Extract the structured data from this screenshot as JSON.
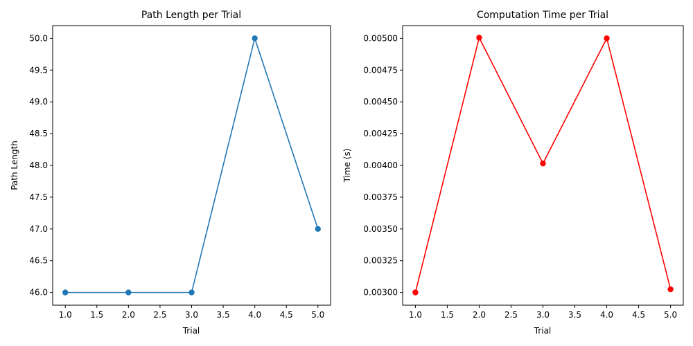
{
  "chart_data": [
    {
      "type": "line",
      "title": "Path Length per Trial",
      "xlabel": "Trial",
      "ylabel": "Path Length",
      "x": [
        1,
        2,
        3,
        4,
        5
      ],
      "series": [
        {
          "values": [
            46,
            46,
            46,
            50,
            47
          ],
          "color": "#1f77b4",
          "marker": "circle"
        }
      ],
      "xlim": [
        0.8,
        5.2
      ],
      "ylim": [
        45.8,
        50.2
      ],
      "xticks": [
        "1.0",
        "1.5",
        "2.0",
        "2.5",
        "3.0",
        "3.5",
        "4.0",
        "4.5",
        "5.0"
      ],
      "yticks": [
        "46.0",
        "46.5",
        "47.0",
        "47.5",
        "48.0",
        "48.5",
        "49.0",
        "49.5",
        "50.0"
      ],
      "grid": false
    },
    {
      "type": "line",
      "title": "Computation Time per Trial",
      "xlabel": "Trial",
      "ylabel": "Time (s)",
      "x": [
        1,
        2,
        3,
        4,
        5
      ],
      "series": [
        {
          "values": [
            0.003,
            0.005005,
            0.004015,
            0.005,
            0.003025
          ],
          "color": "#ff0000",
          "marker": "circle"
        }
      ],
      "xlim": [
        0.8,
        5.2
      ],
      "ylim": [
        0.0029,
        0.0051
      ],
      "xticks": [
        "1.0",
        "1.5",
        "2.0",
        "2.5",
        "3.0",
        "3.5",
        "4.0",
        "4.5",
        "5.0"
      ],
      "yticks": [
        "0.00300",
        "0.00325",
        "0.00350",
        "0.00375",
        "0.00400",
        "0.00425",
        "0.00450",
        "0.00475",
        "0.00500"
      ],
      "grid": false
    }
  ]
}
